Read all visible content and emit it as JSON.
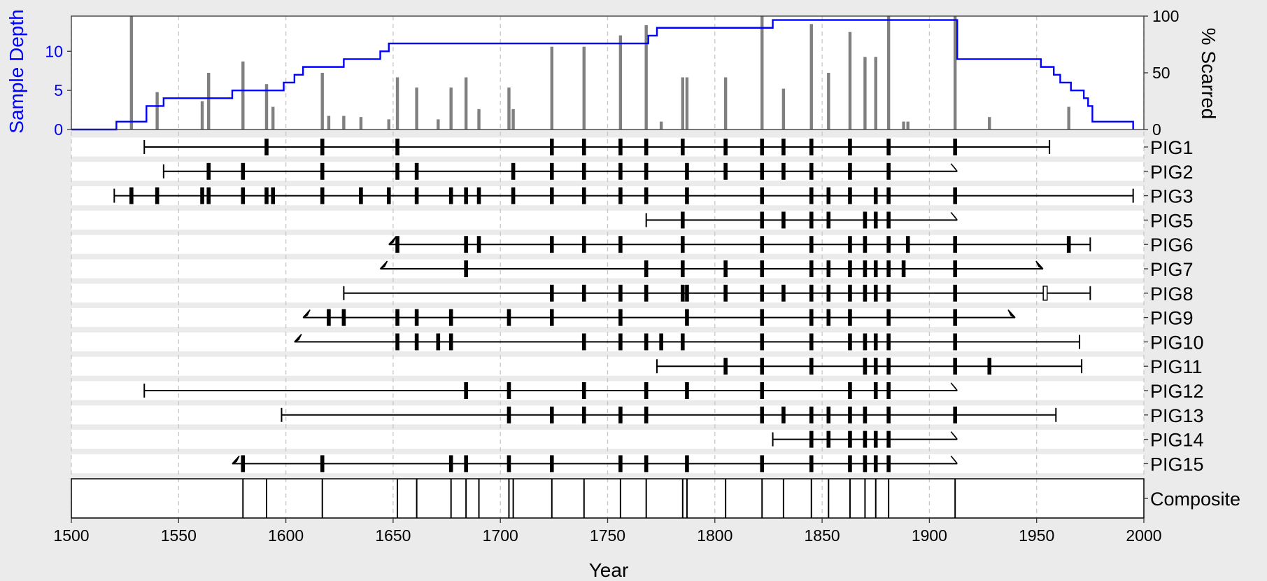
{
  "chart_data": {
    "type": "fire-history",
    "xlabel": "Year",
    "xlim": [
      1500,
      2000
    ],
    "xticks": [
      1500,
      1550,
      1600,
      1650,
      1700,
      1750,
      1800,
      1850,
      1900,
      1950,
      2000
    ],
    "top_panel": {
      "ylabel_left": "Sample Depth",
      "ylabel_right": "% Scarred",
      "left_ylim": [
        0,
        14.5
      ],
      "left_ticks": [
        0,
        5,
        10
      ],
      "right_ticks": [
        0,
        50,
        100
      ],
      "line_color": "#0000ff",
      "bar_color": "#808080",
      "sample_depth_steps": [
        {
          "x": 1500,
          "y": 0
        },
        {
          "x": 1521,
          "y": 1
        },
        {
          "x": 1535,
          "y": 3
        },
        {
          "x": 1543,
          "y": 4
        },
        {
          "x": 1575,
          "y": 5
        },
        {
          "x": 1599,
          "y": 6
        },
        {
          "x": 1604,
          "y": 7
        },
        {
          "x": 1608,
          "y": 8
        },
        {
          "x": 1627,
          "y": 9
        },
        {
          "x": 1644,
          "y": 10
        },
        {
          "x": 1648,
          "y": 11
        },
        {
          "x": 1769,
          "y": 12
        },
        {
          "x": 1773,
          "y": 13
        },
        {
          "x": 1827,
          "y": 14
        },
        {
          "x": 1913,
          "y": 9
        },
        {
          "x": 1952,
          "y": 8
        },
        {
          "x": 1958,
          "y": 7
        },
        {
          "x": 1961,
          "y": 6
        },
        {
          "x": 1966,
          "y": 5
        },
        {
          "x": 1972,
          "y": 4
        },
        {
          "x": 1974,
          "y": 3
        },
        {
          "x": 1976,
          "y": 1
        },
        {
          "x": 1995,
          "y": 0
        }
      ],
      "percent_scarred": [
        {
          "x": 1528,
          "y": 100
        },
        {
          "x": 1540,
          "y": 33
        },
        {
          "x": 1561,
          "y": 25
        },
        {
          "x": 1564,
          "y": 50
        },
        {
          "x": 1580,
          "y": 60
        },
        {
          "x": 1591,
          "y": 40
        },
        {
          "x": 1594,
          "y": 20
        },
        {
          "x": 1617,
          "y": 50
        },
        {
          "x": 1620,
          "y": 12
        },
        {
          "x": 1627,
          "y": 12
        },
        {
          "x": 1635,
          "y": 11
        },
        {
          "x": 1648,
          "y": 9
        },
        {
          "x": 1652,
          "y": 46
        },
        {
          "x": 1661,
          "y": 37
        },
        {
          "x": 1671,
          "y": 9
        },
        {
          "x": 1677,
          "y": 37
        },
        {
          "x": 1684,
          "y": 46
        },
        {
          "x": 1690,
          "y": 18
        },
        {
          "x": 1704,
          "y": 37
        },
        {
          "x": 1706,
          "y": 18
        },
        {
          "x": 1724,
          "y": 73
        },
        {
          "x": 1739,
          "y": 73
        },
        {
          "x": 1756,
          "y": 83
        },
        {
          "x": 1768,
          "y": 92
        },
        {
          "x": 1775,
          "y": 7
        },
        {
          "x": 1785,
          "y": 46
        },
        {
          "x": 1787,
          "y": 46
        },
        {
          "x": 1805,
          "y": 46
        },
        {
          "x": 1822,
          "y": 100
        },
        {
          "x": 1832,
          "y": 36
        },
        {
          "x": 1845,
          "y": 93
        },
        {
          "x": 1853,
          "y": 50
        },
        {
          "x": 1863,
          "y": 86
        },
        {
          "x": 1870,
          "y": 64
        },
        {
          "x": 1875,
          "y": 64
        },
        {
          "x": 1881,
          "y": 100
        },
        {
          "x": 1888,
          "y": 7
        },
        {
          "x": 1890,
          "y": 7
        },
        {
          "x": 1912,
          "y": 100
        },
        {
          "x": 1928,
          "y": 11
        },
        {
          "x": 1965,
          "y": 20
        }
      ]
    },
    "series": [
      {
        "name": "PIG1",
        "start": 1534,
        "end": 1956,
        "start_type": "pith",
        "end_type": "bark",
        "scars": [
          1591,
          1617,
          1652,
          1724,
          1739,
          1756,
          1768,
          1785,
          1805,
          1822,
          1832,
          1845,
          1863,
          1881,
          1912
        ]
      },
      {
        "name": "PIG2",
        "start": 1543,
        "end": 1913,
        "start_type": "pith",
        "end_type": "recorder-end",
        "scars": [
          1564,
          1580,
          1617,
          1652,
          1661,
          1706,
          1724,
          1739,
          1756,
          1768,
          1787,
          1805,
          1822,
          1832,
          1845,
          1863,
          1881
        ]
      },
      {
        "name": "PIG3",
        "start": 1520,
        "end": 1995,
        "start_type": "pith",
        "end_type": "bark",
        "scars": [
          1528,
          1540,
          1561,
          1564,
          1580,
          1591,
          1594,
          1617,
          1635,
          1648,
          1661,
          1677,
          1684,
          1690,
          1706,
          1724,
          1739,
          1756,
          1768,
          1787,
          1822,
          1845,
          1853,
          1863,
          1875,
          1881,
          1912
        ]
      },
      {
        "name": "PIG5",
        "start": 1768,
        "end": 1913,
        "start_type": "pith",
        "end_type": "recorder-end",
        "scars": [
          1785,
          1822,
          1832,
          1845,
          1853,
          1870,
          1875,
          1881
        ]
      },
      {
        "name": "PIG6",
        "start": 1648,
        "end": 1975,
        "start_type": "inner-ring",
        "end_type": "bark",
        "scars": [
          1652,
          1684,
          1690,
          1724,
          1739,
          1756,
          1785,
          1822,
          1845,
          1863,
          1870,
          1881,
          1890,
          1912,
          1965
        ]
      },
      {
        "name": "PIG7",
        "start": 1644,
        "end": 1953,
        "start_type": "inner-ring",
        "end_type": "outer-ring",
        "scars": [
          1684,
          1768,
          1785,
          1805,
          1822,
          1845,
          1853,
          1863,
          1870,
          1875,
          1881,
          1888,
          1912
        ]
      },
      {
        "name": "PIG8",
        "start": 1627,
        "end": 1975,
        "start_type": "pith",
        "end_type": "bark",
        "scars": [
          1724,
          1739,
          1756,
          1768,
          1785,
          1787,
          1805,
          1822,
          1832,
          1845,
          1853,
          1863,
          1870,
          1875,
          1881,
          1912
        ],
        "injuries": [
          1954
        ]
      },
      {
        "name": "PIG9",
        "start": 1608,
        "end": 1940,
        "start_type": "inner-ring",
        "end_type": "outer-ring",
        "scars": [
          1620,
          1627,
          1652,
          1661,
          1677,
          1704,
          1724,
          1756,
          1787,
          1822,
          1845,
          1853,
          1863,
          1881,
          1912
        ]
      },
      {
        "name": "PIG10",
        "start": 1604,
        "end": 1970,
        "start_type": "inner-ring",
        "end_type": "bark",
        "scars": [
          1652,
          1661,
          1671,
          1677,
          1739,
          1756,
          1768,
          1775,
          1785,
          1822,
          1845,
          1863,
          1870,
          1875,
          1881,
          1912
        ]
      },
      {
        "name": "PIG11",
        "start": 1773,
        "end": 1971,
        "start_type": "pith",
        "end_type": "bark",
        "scars": [
          1805,
          1822,
          1845,
          1870,
          1875,
          1881,
          1912,
          1928
        ]
      },
      {
        "name": "PIG12",
        "start": 1534,
        "end": 1913,
        "start_type": "pith",
        "end_type": "recorder-end",
        "scars": [
          1684,
          1704,
          1739,
          1768,
          1787,
          1822,
          1863,
          1875,
          1881
        ]
      },
      {
        "name": "PIG13",
        "start": 1598,
        "end": 1959,
        "start_type": "pith",
        "end_type": "bark",
        "scars": [
          1704,
          1724,
          1739,
          1756,
          1768,
          1822,
          1832,
          1845,
          1853,
          1863,
          1870,
          1881,
          1912
        ]
      },
      {
        "name": "PIG14",
        "start": 1827,
        "end": 1913,
        "start_type": "pith",
        "end_type": "recorder-end",
        "scars": [
          1845,
          1853,
          1863,
          1870,
          1875,
          1881
        ]
      },
      {
        "name": "PIG15",
        "start": 1575,
        "end": 1913,
        "start_type": "inner-ring",
        "end_type": "recorder-end",
        "scars": [
          1580,
          1617,
          1677,
          1684,
          1704,
          1724,
          1756,
          1768,
          1787,
          1822,
          1845,
          1863,
          1870,
          1875,
          1881
        ]
      }
    ],
    "composite": {
      "label": "Composite",
      "events": [
        1580,
        1591,
        1617,
        1652,
        1661,
        1677,
        1684,
        1690,
        1704,
        1706,
        1724,
        1739,
        1756,
        1768,
        1785,
        1787,
        1805,
        1822,
        1832,
        1845,
        1853,
        1863,
        1870,
        1875,
        1881,
        1912
      ]
    }
  }
}
